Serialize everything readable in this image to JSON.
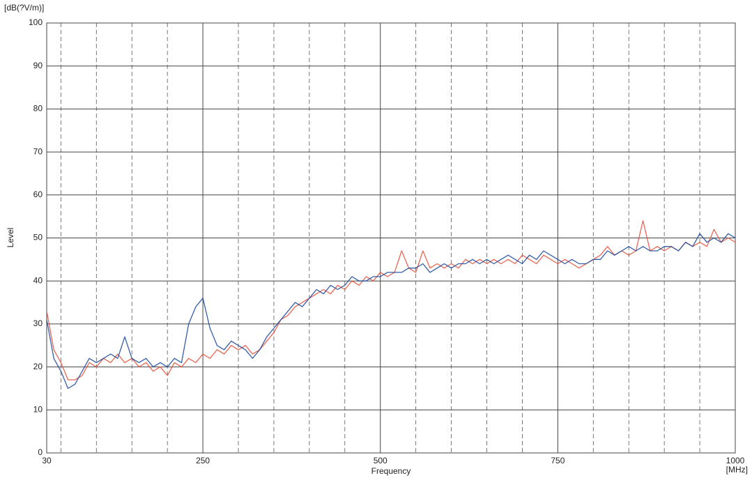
{
  "chart_data": {
    "type": "line",
    "ylabel_unit": "[dB(?V/m)]",
    "ylabel": "Level",
    "xlabel": "Frequency",
    "xlabel_unit": "[MHz]",
    "x": [
      30,
      40,
      50,
      60,
      70,
      80,
      90,
      100,
      110,
      120,
      130,
      140,
      150,
      160,
      170,
      180,
      190,
      200,
      210,
      220,
      230,
      240,
      250,
      260,
      270,
      280,
      290,
      300,
      310,
      320,
      330,
      340,
      350,
      360,
      370,
      380,
      390,
      400,
      410,
      420,
      430,
      440,
      450,
      460,
      470,
      480,
      490,
      500,
      510,
      520,
      530,
      540,
      550,
      560,
      570,
      580,
      590,
      600,
      610,
      620,
      630,
      640,
      650,
      660,
      670,
      680,
      690,
      700,
      710,
      720,
      730,
      740,
      750,
      760,
      770,
      780,
      790,
      800,
      810,
      820,
      830,
      840,
      850,
      860,
      870,
      880,
      890,
      900,
      910,
      920,
      930,
      940,
      950,
      960,
      970,
      980,
      990,
      1000
    ],
    "series": [
      {
        "color": "#e8553f",
        "values": [
          33,
          24,
          21,
          17,
          17,
          18,
          21,
          20,
          22,
          21,
          23,
          21,
          22,
          20,
          21,
          19,
          20,
          18,
          21,
          20,
          22,
          21,
          23,
          22,
          24,
          23,
          25,
          24,
          25,
          23,
          24,
          26,
          28,
          31,
          32,
          34,
          35,
          36,
          37,
          38,
          37,
          39,
          38,
          40,
          39,
          41,
          40,
          42,
          41,
          42,
          47,
          43,
          42,
          47,
          43,
          44,
          43,
          44,
          43,
          45,
          44,
          45,
          44,
          45,
          44,
          45,
          44,
          46,
          45,
          44,
          46,
          45,
          44,
          45,
          44,
          43,
          44,
          45,
          46,
          48,
          46,
          47,
          46,
          47,
          54,
          47,
          48,
          47,
          48,
          47,
          49,
          48,
          49,
          48,
          52,
          49,
          50,
          49
        ]
      },
      {
        "color": "#1f4c9e",
        "values": [
          31,
          22,
          19,
          15,
          16,
          19,
          22,
          21,
          22,
          23,
          22,
          27,
          22,
          21,
          22,
          20,
          21,
          20,
          22,
          21,
          30,
          34,
          36,
          29,
          25,
          24,
          26,
          25,
          24,
          22,
          24,
          27,
          29,
          31,
          33,
          35,
          34,
          36,
          38,
          37,
          39,
          38,
          39,
          41,
          40,
          40,
          41,
          41,
          42,
          42,
          42,
          43,
          43,
          44,
          42,
          43,
          44,
          43,
          44,
          44,
          45,
          44,
          45,
          44,
          45,
          46,
          45,
          44,
          46,
          45,
          47,
          46,
          45,
          44,
          45,
          44,
          44,
          45,
          45,
          47,
          46,
          47,
          48,
          47,
          48,
          47,
          47,
          48,
          48,
          47,
          49,
          48,
          51,
          49,
          50,
          49,
          51,
          50
        ]
      }
    ],
    "xlim": [
      30,
      1000
    ],
    "xticks": [
      30,
      250,
      500,
      750,
      1000
    ],
    "xgrid_minor": [
      50,
      100,
      150,
      200,
      300,
      350,
      400,
      450,
      550,
      600,
      650,
      700,
      800,
      850,
      900,
      950
    ],
    "ylim": [
      0,
      100
    ],
    "yticks": [
      0,
      10,
      20,
      30,
      40,
      50,
      60,
      70,
      80,
      90,
      100
    ],
    "grid": true
  }
}
